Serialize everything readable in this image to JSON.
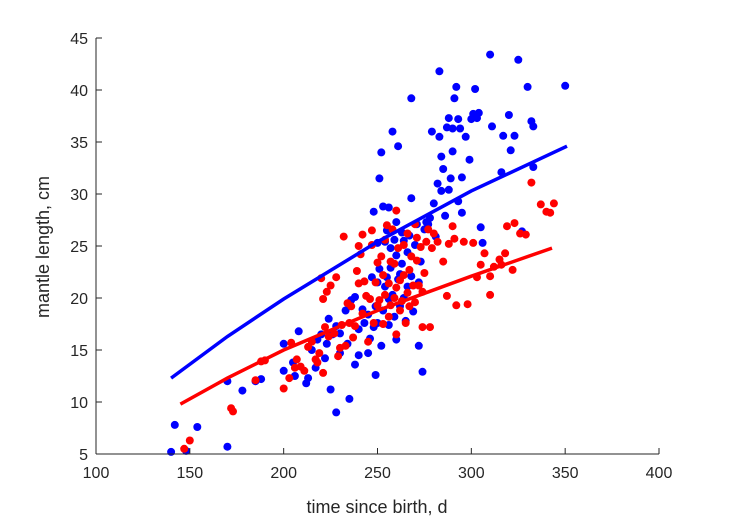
{
  "chart_data": {
    "type": "scatter",
    "title": "",
    "xlabel": "time since birth, d",
    "ylabel": "mantle length, cm",
    "xlim": [
      100,
      400
    ],
    "ylim": [
      5,
      45
    ],
    "xticks": [
      100,
      150,
      200,
      250,
      300,
      350,
      400
    ],
    "yticks": [
      5,
      10,
      15,
      20,
      25,
      30,
      35,
      40,
      45
    ],
    "grid": false,
    "legend": "none",
    "series": [
      {
        "color": "#0000ff",
        "points": [
          [
            140,
            5.2
          ],
          [
            142,
            7.8
          ],
          [
            148,
            5.3
          ],
          [
            154,
            7.6
          ],
          [
            170,
            12.0
          ],
          [
            170,
            5.7
          ],
          [
            178,
            11.1
          ],
          [
            185,
            12.0
          ],
          [
            188,
            12.2
          ],
          [
            200,
            15.6
          ],
          [
            200,
            13.0
          ],
          [
            205,
            13.8
          ],
          [
            206,
            12.5
          ],
          [
            208,
            16.8
          ],
          [
            212,
            11.8
          ],
          [
            213,
            12.3
          ],
          [
            215,
            15.0
          ],
          [
            217,
            13.3
          ],
          [
            218,
            16.0
          ],
          [
            220,
            16.5
          ],
          [
            222,
            14.2
          ],
          [
            223,
            15.6
          ],
          [
            224,
            18.0
          ],
          [
            225,
            11.2
          ],
          [
            226,
            16.5
          ],
          [
            228,
            9.0
          ],
          [
            228,
            17.3
          ],
          [
            230,
            14.7
          ],
          [
            230,
            16.6
          ],
          [
            233,
            18.8
          ],
          [
            234,
            15.6
          ],
          [
            235,
            10.3
          ],
          [
            236,
            19.8
          ],
          [
            238,
            13.6
          ],
          [
            238,
            20.1
          ],
          [
            240,
            17.0
          ],
          [
            240,
            14.5
          ],
          [
            242,
            18.9
          ],
          [
            243,
            17.6
          ],
          [
            245,
            18.4
          ],
          [
            245,
            14.7
          ],
          [
            246,
            16.1
          ],
          [
            247,
            22.0
          ],
          [
            248,
            28.3
          ],
          [
            248,
            17.2
          ],
          [
            249,
            12.6
          ],
          [
            249,
            19.2
          ],
          [
            250,
            21.5
          ],
          [
            250,
            25.3
          ],
          [
            250,
            17.6
          ],
          [
            251,
            22.8
          ],
          [
            251,
            31.5
          ],
          [
            252,
            34.0
          ],
          [
            252,
            15.4
          ],
          [
            253,
            18.8
          ],
          [
            253,
            28.8
          ],
          [
            254,
            25.4
          ],
          [
            254,
            21.1
          ],
          [
            255,
            26.5
          ],
          [
            255,
            22.0
          ],
          [
            256,
            19.9
          ],
          [
            256,
            28.7
          ],
          [
            256,
            17.4
          ],
          [
            257,
            24.8
          ],
          [
            257,
            22.9
          ],
          [
            258,
            36.0
          ],
          [
            258,
            20.3
          ],
          [
            259,
            25.6
          ],
          [
            259,
            18.2
          ],
          [
            260,
            24.1
          ],
          [
            260,
            27.3
          ],
          [
            260,
            16.0
          ],
          [
            261,
            34.6
          ],
          [
            261,
            21.8
          ],
          [
            262,
            22.3
          ],
          [
            262,
            19.2
          ],
          [
            263,
            23.3
          ],
          [
            263,
            26.3
          ],
          [
            264,
            20.0
          ],
          [
            264,
            25.5
          ],
          [
            265,
            17.8
          ],
          [
            266,
            21.1
          ],
          [
            266,
            24.4
          ],
          [
            267,
            26.0
          ],
          [
            268,
            39.2
          ],
          [
            268,
            29.6
          ],
          [
            268,
            22.1
          ],
          [
            269,
            18.7
          ],
          [
            270,
            25.1
          ],
          [
            271,
            27.1
          ],
          [
            272,
            21.5
          ],
          [
            272,
            15.4
          ],
          [
            273,
            23.5
          ],
          [
            274,
            12.9
          ],
          [
            275,
            26.6
          ],
          [
            276,
            27.3
          ],
          [
            277,
            27.1
          ],
          [
            278,
            27.7
          ],
          [
            279,
            36.0
          ],
          [
            280,
            29.1
          ],
          [
            281,
            25.9
          ],
          [
            282,
            31.0
          ],
          [
            283,
            35.5
          ],
          [
            283,
            41.8
          ],
          [
            284,
            30.3
          ],
          [
            284,
            33.6
          ],
          [
            285,
            32.4
          ],
          [
            286,
            27.9
          ],
          [
            287,
            36.4
          ],
          [
            288,
            37.3
          ],
          [
            288,
            30.4
          ],
          [
            289,
            31.5
          ],
          [
            290,
            34.1
          ],
          [
            290,
            36.3
          ],
          [
            291,
            39.2
          ],
          [
            292,
            40.3
          ],
          [
            293,
            37.2
          ],
          [
            293,
            29.3
          ],
          [
            294,
            36.3
          ],
          [
            295,
            31.6
          ],
          [
            295,
            28.2
          ],
          [
            297,
            35.5
          ],
          [
            299,
            33.3
          ],
          [
            300,
            37.2
          ],
          [
            301,
            37.7
          ],
          [
            302,
            40.1
          ],
          [
            303,
            37.3
          ],
          [
            304,
            37.8
          ],
          [
            305,
            26.8
          ],
          [
            306,
            25.3
          ],
          [
            310,
            43.4
          ],
          [
            311,
            36.5
          ],
          [
            316,
            32.1
          ],
          [
            317,
            35.6
          ],
          [
            320,
            37.6
          ],
          [
            321,
            34.2
          ],
          [
            323,
            35.6
          ],
          [
            325,
            42.9
          ],
          [
            327,
            26.4
          ],
          [
            330,
            40.3
          ],
          [
            332,
            37.0
          ],
          [
            333,
            36.5
          ],
          [
            333,
            32.6
          ],
          [
            350,
            40.4
          ]
        ],
        "fit": [
          [
            140,
            12.3
          ],
          [
            170,
            16.3
          ],
          [
            200,
            19.9
          ],
          [
            250,
            25.4
          ],
          [
            300,
            30.3
          ],
          [
            351,
            34.6
          ]
        ]
      },
      {
        "color": "#ff0000",
        "points": [
          [
            147,
            5.5
          ],
          [
            150,
            6.3
          ],
          [
            172,
            9.4
          ],
          [
            173,
            9.1
          ],
          [
            185,
            12.1
          ],
          [
            188,
            13.9
          ],
          [
            190,
            14.0
          ],
          [
            200,
            11.3
          ],
          [
            203,
            12.3
          ],
          [
            204,
            15.7
          ],
          [
            206,
            13.3
          ],
          [
            207,
            14.1
          ],
          [
            209,
            13.4
          ],
          [
            211,
            13.0
          ],
          [
            213,
            15.3
          ],
          [
            215,
            15.8
          ],
          [
            217,
            14.1
          ],
          [
            218,
            13.8
          ],
          [
            219,
            14.7
          ],
          [
            220,
            21.9
          ],
          [
            221,
            12.8
          ],
          [
            221,
            19.9
          ],
          [
            222,
            17.2
          ],
          [
            223,
            20.6
          ],
          [
            224,
            16.3
          ],
          [
            225,
            21.2
          ],
          [
            227,
            16.6
          ],
          [
            228,
            22.0
          ],
          [
            229,
            14.4
          ],
          [
            230,
            15.2
          ],
          [
            231,
            17.4
          ],
          [
            232,
            25.9
          ],
          [
            233,
            15.4
          ],
          [
            234,
            19.5
          ],
          [
            235,
            17.6
          ],
          [
            236,
            19.2
          ],
          [
            237,
            16.2
          ],
          [
            238,
            17.3
          ],
          [
            239,
            22.6
          ],
          [
            240,
            21.4
          ],
          [
            240,
            25.0
          ],
          [
            241,
            24.2
          ],
          [
            242,
            26.1
          ],
          [
            242,
            18.5
          ],
          [
            243,
            21.6
          ],
          [
            244,
            20.2
          ],
          [
            245,
            15.8
          ],
          [
            246,
            19.9
          ],
          [
            247,
            25.1
          ],
          [
            247,
            26.5
          ],
          [
            248,
            17.6
          ],
          [
            249,
            21.5
          ],
          [
            250,
            19.3
          ],
          [
            250,
            23.4
          ],
          [
            251,
            19.8
          ],
          [
            252,
            24.0
          ],
          [
            253,
            22.2
          ],
          [
            253,
            17.5
          ],
          [
            254,
            20.3
          ],
          [
            254,
            25.6
          ],
          [
            255,
            27.0
          ],
          [
            256,
            18.2
          ],
          [
            256,
            21.4
          ],
          [
            257,
            23.5
          ],
          [
            257,
            19.3
          ],
          [
            258,
            26.6
          ],
          [
            259,
            20.0
          ],
          [
            259,
            23.3
          ],
          [
            260,
            28.4
          ],
          [
            260,
            21.0
          ],
          [
            260,
            16.5
          ],
          [
            261,
            24.8
          ],
          [
            262,
            21.7
          ],
          [
            262,
            18.8
          ],
          [
            263,
            19.7
          ],
          [
            264,
            25.1
          ],
          [
            264,
            22.2
          ],
          [
            265,
            17.6
          ],
          [
            266,
            26.2
          ],
          [
            266,
            20.5
          ],
          [
            267,
            22.7
          ],
          [
            267,
            19.2
          ],
          [
            268,
            24.0
          ],
          [
            269,
            21.2
          ],
          [
            270,
            27.1
          ],
          [
            270,
            19.6
          ],
          [
            271,
            23.6
          ],
          [
            271,
            25.8
          ],
          [
            272,
            21.2
          ],
          [
            273,
            24.9
          ],
          [
            274,
            20.6
          ],
          [
            274,
            17.2
          ],
          [
            275,
            22.4
          ],
          [
            276,
            25.4
          ],
          [
            277,
            26.6
          ],
          [
            278,
            17.2
          ],
          [
            279,
            24.8
          ],
          [
            280,
            26.2
          ],
          [
            282,
            25.4
          ],
          [
            285,
            23.5
          ],
          [
            287,
            20.2
          ],
          [
            288,
            25.2
          ],
          [
            290,
            26.9
          ],
          [
            291,
            25.7
          ],
          [
            292,
            19.3
          ],
          [
            296,
            25.4
          ],
          [
            298,
            19.4
          ],
          [
            301,
            25.3
          ],
          [
            303,
            22.0
          ],
          [
            305,
            23.2
          ],
          [
            307,
            24.3
          ],
          [
            310,
            20.3
          ],
          [
            310,
            22.1
          ],
          [
            312,
            23.0
          ],
          [
            315,
            23.7
          ],
          [
            316,
            23.2
          ],
          [
            318,
            24.3
          ],
          [
            319,
            26.9
          ],
          [
            322,
            22.7
          ],
          [
            323,
            27.2
          ],
          [
            326,
            26.2
          ],
          [
            329,
            26.1
          ],
          [
            332,
            31.1
          ],
          [
            337,
            29.0
          ],
          [
            340,
            28.3
          ],
          [
            342,
            28.2
          ],
          [
            344,
            29.1
          ]
        ],
        "fit": [
          [
            145,
            9.8
          ],
          [
            170,
            12.3
          ],
          [
            200,
            15.0
          ],
          [
            250,
            18.8
          ],
          [
            300,
            22.1
          ],
          [
            343,
            24.8
          ]
        ]
      }
    ]
  }
}
